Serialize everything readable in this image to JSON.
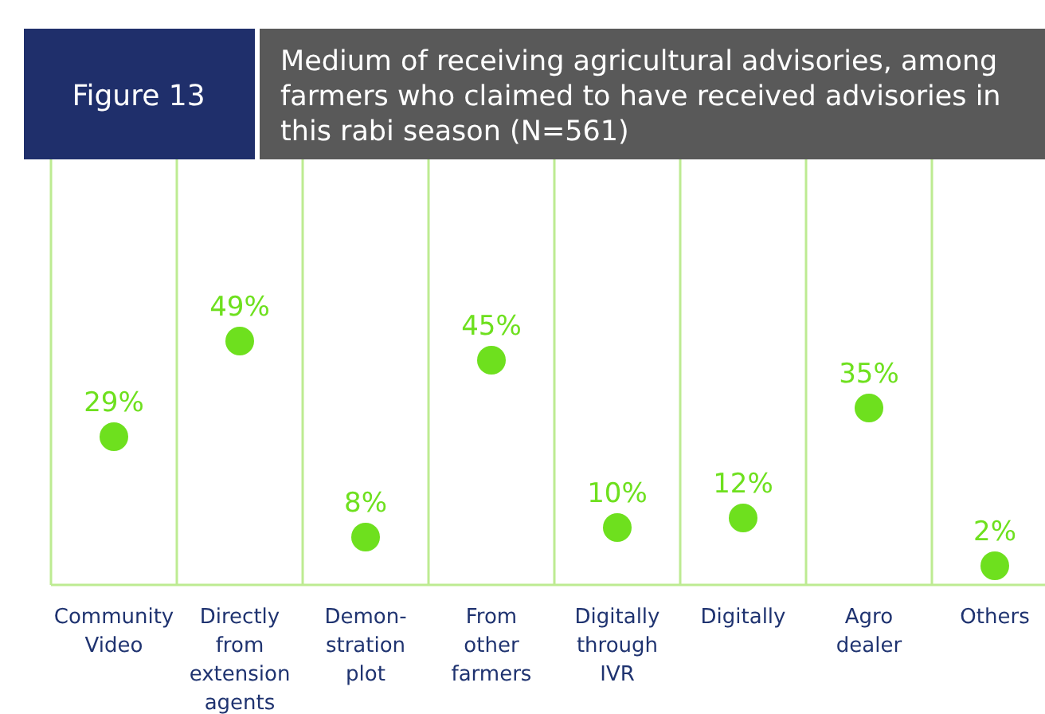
{
  "chart_data": {
    "type": "scatter",
    "title": "Medium of receiving agricultural advisories, among farmers who claimed to have received advisories in this rabi season (N=561)",
    "annotations": [
      "Figure 13"
    ],
    "categories": [
      "Community Video",
      "Directly from extension agents",
      "Demon-stration plot",
      "From other farmers",
      "Digitally through IVR",
      "Digitally",
      "Agro dealer",
      "Others"
    ],
    "values": [
      29,
      49,
      8,
      45,
      10,
      12,
      35,
      2
    ],
    "value_labels": [
      "29%",
      "49%",
      "8%",
      "45%",
      "10%",
      "12%",
      "35%",
      "2%"
    ],
    "color": "#6ee01e",
    "grid": "x",
    "marker": "circle"
  }
}
